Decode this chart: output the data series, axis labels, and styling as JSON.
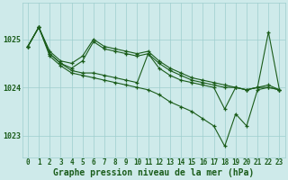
{
  "bg_color": "#ceeaea",
  "grid_color": "#9ecece",
  "line_color": "#1a5c1a",
  "marker_color": "#1a5c1a",
  "xlabel": "Graphe pression niveau de la mer (hPa)",
  "xlabel_fontsize": 7.0,
  "ylim": [
    1022.55,
    1025.75
  ],
  "xlim": [
    -0.5,
    23.5
  ],
  "yticks": [
    1023,
    1024,
    1025
  ],
  "xticks": [
    0,
    1,
    2,
    3,
    4,
    5,
    6,
    7,
    8,
    9,
    10,
    11,
    12,
    13,
    14,
    15,
    16,
    17,
    18,
    19,
    20,
    21,
    22,
    23
  ],
  "tick_fontsize": 5.5,
  "ytick_fontsize": 6.0,
  "series": [
    [
      1024.85,
      1025.25,
      1024.75,
      1024.55,
      1024.5,
      1024.65,
      1025.0,
      1024.85,
      1024.8,
      1024.75,
      1024.7,
      1024.75,
      1024.55,
      1024.4,
      1024.3,
      1024.2,
      1024.15,
      1024.1,
      1024.05,
      1024.0,
      1023.95,
      1024.0,
      1024.05,
      1023.95
    ],
    [
      1024.85,
      1025.25,
      1024.7,
      1024.5,
      1024.4,
      1024.55,
      1024.95,
      1024.8,
      1024.75,
      1024.7,
      1024.65,
      1024.7,
      1024.5,
      1024.35,
      1024.25,
      1024.15,
      1024.1,
      1024.05,
      1024.0,
      1024.0,
      1023.95,
      1024.0,
      1024.0,
      1023.95
    ],
    [
      1024.85,
      1025.25,
      1024.65,
      1024.45,
      1024.3,
      1024.25,
      1024.2,
      1024.15,
      1024.1,
      1024.05,
      1024.0,
      1023.95,
      1023.85,
      1023.7,
      1023.6,
      1023.5,
      1023.35,
      1023.2,
      1022.78,
      1023.45,
      1023.2,
      1023.95,
      1024.0,
      1023.95
    ],
    [
      1024.85,
      1025.25,
      1024.7,
      1024.5,
      1024.35,
      1024.3,
      1024.3,
      1024.25,
      1024.2,
      1024.15,
      1024.1,
      1024.7,
      1024.4,
      1024.25,
      1024.15,
      1024.1,
      1024.05,
      1024.0,
      1023.55,
      1024.0,
      1023.95,
      1024.0,
      1025.15,
      1023.95
    ]
  ]
}
